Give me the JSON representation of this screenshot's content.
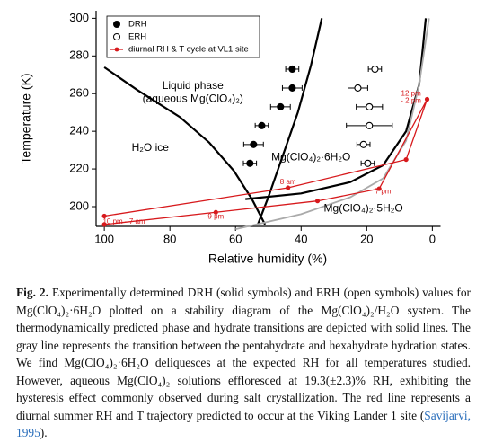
{
  "chart_data": {
    "type": "scatter",
    "xlabel": "Relative humidity (%)",
    "ylabel": "Temperature (K)",
    "xlim": [
      102.5,
      -2.5
    ],
    "ylim": [
      189.5,
      304
    ],
    "xticks": [
      100,
      80,
      60,
      40,
      20,
      0
    ],
    "yticks": [
      200,
      220,
      240,
      260,
      280,
      300
    ],
    "legend": "upper left",
    "series": [
      {
        "name": "DRH",
        "color": "#000000",
        "marker": "filled",
        "x": [
          42.7,
          42.7,
          46.3,
          52,
          54.5,
          55.6
        ],
        "values": [
          273,
          263,
          253,
          243,
          233,
          223
        ],
        "xerr": [
          2,
          3,
          3,
          2,
          3,
          2
        ]
      },
      {
        "name": "ERH",
        "color": "#000000",
        "marker": "open",
        "x": [
          17.5,
          22.7,
          19.2,
          19.2,
          21,
          19.7
        ],
        "values": [
          273,
          263,
          253,
          243,
          233,
          223
        ],
        "xerr": [
          2,
          3,
          4,
          7,
          2,
          2
        ]
      },
      {
        "name": "diurnal RH & T cycle at VL1 site",
        "color": "#d7191c",
        "marker": "line",
        "x": [
          100,
          66,
          35,
          16.2,
          1.6,
          8,
          44,
          100
        ],
        "values": [
          190.5,
          197,
          203,
          209.5,
          257,
          225,
          210,
          195
        ]
      }
    ],
    "lines": [
      {
        "color": "#000000",
        "x": [
          53.2,
          50,
          47,
          44,
          41,
          37,
          33.7
        ],
        "values": [
          190.5,
          205,
          220,
          235,
          250,
          275,
          300
        ]
      },
      {
        "color": "#000000",
        "x": [
          100,
          90,
          77,
          68,
          60.5,
          55,
          51
        ],
        "values": [
          274,
          262,
          247.6,
          234,
          219,
          204,
          190.5
        ]
      },
      {
        "color": "#000000",
        "x": [
          57,
          40,
          25,
          15,
          8,
          4,
          2
        ],
        "values": [
          204,
          207,
          213,
          222,
          240,
          265,
          300
        ]
      },
      {
        "color": "#aaaaaa",
        "x": [
          60,
          40,
          25,
          15,
          8,
          4,
          1
        ],
        "values": [
          188,
          196,
          205,
          215,
          235,
          265,
          300
        ]
      }
    ],
    "annotations": [
      "Liquid phase",
      "(aqueous Mg(ClO₄)₂)",
      "H₂O ice",
      "Mg(ClO₄)₂·6H₂O",
      "Mg(ClO₄)₂·5H₂O",
      "8 am",
      "7 pm",
      "9 pm",
      "10 pm - 7 am",
      "12 pm",
      "- 2 pm"
    ]
  },
  "caption": {
    "label": "Fig. 2.",
    "text": "Experimentally determined DRH (solid symbols) and ERH (open symbols) values for Mg(ClO₄)₂·6H₂O plotted on a stability diagram of the Mg(ClO₄)₂/H₂O system. The thermodynamically predicted phase and hydrate transitions are depicted with solid lines. The gray line represents the transition between the pentahydrate and hexahydrate hydration states. We find Mg(ClO₄)₂·6H₂O deliquesces at the expected RH for all temperatures studied. However, aqueous Mg(ClO₄)₂ solutions effloresced at 19.3(±2.3)% RH, exhibiting the hysteresis effect commonly observed during salt crystallization. The red line represents a diurnal summer RH and T trajectory predicted to occur at the Viking Lander 1 site (",
    "link": "Savijarvi, 1995",
    "end": ")."
  }
}
